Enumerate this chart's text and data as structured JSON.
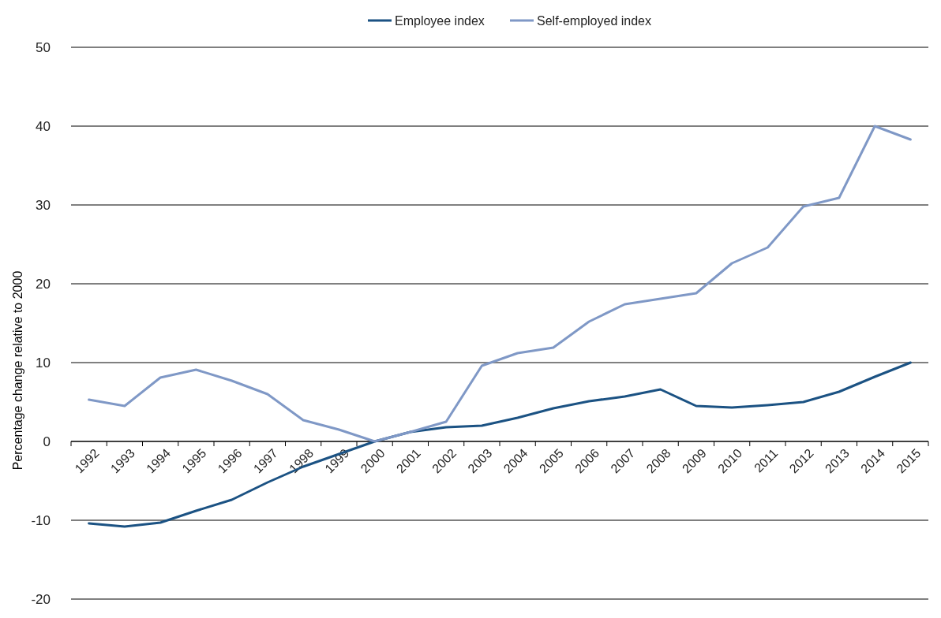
{
  "chart_data": {
    "type": "line",
    "ylabel": "Percentage change relative to 2000",
    "categories": [
      "1992",
      "1993",
      "1994",
      "1995",
      "1996",
      "1997",
      "1998",
      "1999",
      "2000",
      "2001",
      "2002",
      "2003",
      "2004",
      "2005",
      "2006",
      "2007",
      "2008",
      "2009",
      "2010",
      "2011",
      "2012",
      "2013",
      "2014",
      "2015"
    ],
    "series": [
      {
        "name": "Employee index",
        "color": "#1b5283",
        "values": [
          -10.4,
          -10.8,
          -10.3,
          -8.8,
          -7.4,
          -5.2,
          -3.2,
          -1.6,
          0,
          1.2,
          1.8,
          2.0,
          3.0,
          4.2,
          5.1,
          5.7,
          6.6,
          4.5,
          4.3,
          4.6,
          5.0,
          6.3,
          8.2,
          10.0
        ]
      },
      {
        "name": "Self-employed index",
        "color": "#7f98c6",
        "values": [
          5.3,
          4.5,
          8.1,
          9.1,
          7.7,
          6.0,
          2.7,
          1.5,
          0,
          1.2,
          2.5,
          9.6,
          11.2,
          11.9,
          15.2,
          17.4,
          18.1,
          18.8,
          22.6,
          24.6,
          29.8,
          30.9,
          40.0,
          38.3
        ]
      }
    ],
    "ylim": [
      -20,
      50
    ],
    "yticks": [
      -20,
      -10,
      0,
      10,
      20,
      30,
      40,
      50
    ],
    "grid": "y",
    "legend": "top",
    "marker": "none",
    "line_style": "solid"
  }
}
